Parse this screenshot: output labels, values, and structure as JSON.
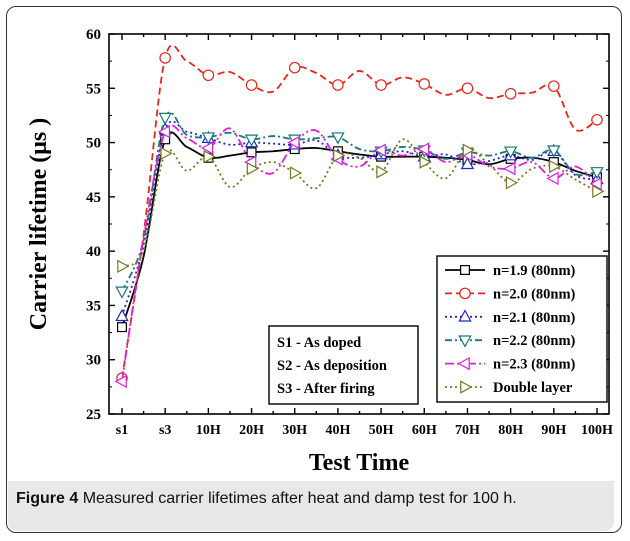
{
  "caption": {
    "label": "Figure 4",
    "text": "Measured carrier lifetimes after heat and damp test for 100 h."
  },
  "chart_data": {
    "type": "line",
    "xlabel": "Test Time",
    "ylabel": "Carrier lifetime (μs  )",
    "categories": [
      "s1",
      "s2",
      "s3",
      "s4",
      "10H",
      "15H",
      "20H",
      "25H",
      "30H",
      "35H",
      "40H",
      "45H",
      "50H",
      "55H",
      "60H",
      "65H",
      "70H",
      "75H",
      "80H",
      "85H",
      "90H",
      "95H",
      "100H"
    ],
    "tick_labels": [
      "s1",
      "",
      "s3",
      "",
      "10H",
      "",
      "20H",
      "",
      "30H",
      "",
      "40H",
      "",
      "50H",
      "",
      "60H",
      "",
      "70H",
      "",
      "80H",
      "",
      "90H",
      "",
      "100H"
    ],
    "ylim": [
      25,
      60
    ],
    "yticks": [
      25,
      30,
      35,
      40,
      45,
      50,
      55,
      60
    ],
    "grid": false,
    "legend_position": "right",
    "series": [
      {
        "name": "n=1.9 (80nm)",
        "color": "#000000",
        "dash": "solid",
        "marker": "square",
        "values": [
          33.0,
          39.5,
          50.3,
          49.6,
          48.6,
          48.8,
          49.1,
          49.2,
          49.4,
          49.5,
          49.2,
          48.9,
          48.7,
          48.7,
          48.7,
          48.6,
          48.4,
          48.0,
          48.5,
          48.6,
          48.2,
          47.4,
          46.8
        ]
      },
      {
        "name": "n=2.0 (80nm)",
        "color": "#e8261c",
        "dash": "7,4",
        "marker": "circle",
        "values": [
          28.3,
          41.5,
          57.8,
          57.5,
          56.2,
          56.5,
          55.3,
          54.7,
          56.9,
          56.4,
          55.3,
          56.6,
          55.3,
          56.0,
          55.4,
          54.4,
          55.0,
          54.1,
          54.5,
          54.6,
          55.2,
          51.2,
          52.1
        ]
      },
      {
        "name": "n=2.1 (80nm)",
        "color": "#2323cc",
        "dash": "2,3",
        "marker": "triangle-up",
        "values": [
          34.0,
          40.6,
          51.2,
          51.0,
          50.4,
          49.8,
          50.0,
          49.9,
          49.8,
          50.2,
          48.8,
          48.6,
          48.9,
          49.2,
          48.7,
          48.9,
          48.0,
          48.3,
          48.8,
          48.4,
          49.2,
          47.0,
          46.6
        ]
      },
      {
        "name": "n=2.2 (80nm)",
        "color": "#177878",
        "dash": "7,3,2,3",
        "marker": "triangle-down",
        "values": [
          36.3,
          41.0,
          52.3,
          50.7,
          50.5,
          50.9,
          50.3,
          50.6,
          50.3,
          50.4,
          50.5,
          49.4,
          49.2,
          49.6,
          49.3,
          48.5,
          49.1,
          48.8,
          49.2,
          48.6,
          49.3,
          47.1,
          47.3
        ]
      },
      {
        "name": "n=2.3 (80nm)",
        "color": "#e01ee0",
        "dash": "9,3,2,3,2,3",
        "marker": "triangle-left",
        "values": [
          28.0,
          41.2,
          51.0,
          50.4,
          49.5,
          51.3,
          48.2,
          47.2,
          50.0,
          51.1,
          48.5,
          47.8,
          49.3,
          48.8,
          49.4,
          48.2,
          48.9,
          47.8,
          47.6,
          48.2,
          46.7,
          47.8,
          46.2
        ]
      },
      {
        "name": "Double layer",
        "color": "#787820",
        "dash": "2,3",
        "marker": "triangle-right",
        "values": [
          38.6,
          40.0,
          49.0,
          47.4,
          48.7,
          45.9,
          47.6,
          48.2,
          47.2,
          45.8,
          48.8,
          48.6,
          47.3,
          50.3,
          48.2,
          46.7,
          49.3,
          48.0,
          46.3,
          47.6,
          47.8,
          46.6,
          45.5
        ]
      }
    ]
  },
  "annotation": {
    "lines": [
      "S1 - As doped",
      "S2 - As deposition",
      "S3 - After firing"
    ]
  }
}
